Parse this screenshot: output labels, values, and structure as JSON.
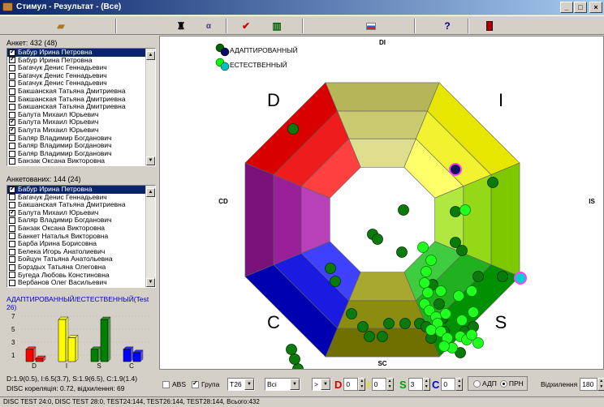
{
  "window": {
    "title": "Стимул - Результат - (Все)"
  },
  "toolbar": {
    "buttons": [
      {
        "name": "open-folder-icon",
        "glyph": "📂"
      },
      {
        "name": "bell-icon",
        "glyph": "🔔"
      },
      {
        "name": "compare-icon",
        "glyph": "⇆"
      },
      {
        "name": "checkmark-icon",
        "glyph": "✔"
      },
      {
        "name": "bar-chart-icon",
        "glyph": "▥"
      },
      {
        "name": "flag-icon",
        "glyph": "▬"
      },
      {
        "name": "help-icon",
        "glyph": "?"
      },
      {
        "name": "exit-icon",
        "glyph": "▮"
      }
    ]
  },
  "left": {
    "list1_caption": "Анкет: 432 (48)",
    "list1": [
      {
        "name": "Бабур Ирина Петровна",
        "checked": true,
        "selected": true
      },
      {
        "name": "Бабур Ирина Петровна",
        "checked": true,
        "selected": false
      },
      {
        "name": "Багачук Денис Геннадьевич",
        "checked": false,
        "selected": false
      },
      {
        "name": "Багачук Денис Геннадьевич",
        "checked": false,
        "selected": false
      },
      {
        "name": "Багачук Денис Геннадьевич",
        "checked": false,
        "selected": false
      },
      {
        "name": "Бакшанская Татьяна Дмитриевна",
        "checked": false,
        "selected": false
      },
      {
        "name": "Бакшанская Татьяна Дмитриевна",
        "checked": false,
        "selected": false
      },
      {
        "name": "Бакшанская Татьяна Дмитриевна",
        "checked": false,
        "selected": false
      },
      {
        "name": "Балута Михаил Юрьевич",
        "checked": false,
        "selected": false
      },
      {
        "name": "Балута Михаил Юрьевич",
        "checked": true,
        "selected": false
      },
      {
        "name": "Балута Михаил Юрьевич",
        "checked": true,
        "selected": false
      },
      {
        "name": "Баляр Владимир Богданович",
        "checked": false,
        "selected": false
      },
      {
        "name": "Баляр Владимир Богданович",
        "checked": false,
        "selected": false
      },
      {
        "name": "Баляр Владимир Богданович",
        "checked": false,
        "selected": false
      },
      {
        "name": "Банзак Оксана Викторовна",
        "checked": false,
        "selected": false
      }
    ],
    "list2_caption": "Анкетованих: 144 (24)",
    "list2": [
      {
        "name": "Бабур Ирина Петровна",
        "checked": true,
        "selected": true
      },
      {
        "name": "Багачук Денис Геннадьевич",
        "checked": false,
        "selected": false
      },
      {
        "name": "Бакшанская Татьяна Дмитриевна",
        "checked": false,
        "selected": false
      },
      {
        "name": "Балута Михаил Юрьевич",
        "checked": true,
        "selected": false
      },
      {
        "name": "Баляр Владимир Богданович",
        "checked": false,
        "selected": false
      },
      {
        "name": "Банзак Оксана Викторовна",
        "checked": false,
        "selected": false
      },
      {
        "name": "Банкет Наталья Викторовна",
        "checked": false,
        "selected": false
      },
      {
        "name": "Барба Ирина Борисовна",
        "checked": false,
        "selected": false
      },
      {
        "name": "Белека Игорь Анатолиевич",
        "checked": false,
        "selected": false
      },
      {
        "name": "Бойцун Татьяна Анатольевна",
        "checked": false,
        "selected": false
      },
      {
        "name": "Борздых Татьяна Олеговна",
        "checked": false,
        "selected": false
      },
      {
        "name": "Бугеда Любовь Констиновна",
        "checked": false,
        "selected": false
      },
      {
        "name": "Вербанов Олег Васильевич",
        "checked": false,
        "selected": false
      }
    ],
    "chart_title": "АДАПТИРОВАННЫЙ/ЕСТЕСТВЕННЫЙ(Test 26)",
    "stats_line1": "D:1.9(0.5), I:6.5(3.7), S:1.9(6.5), C:1.9(1.4)",
    "stats_line2": "DISC кореляція: 0.72, відхилення: 69"
  },
  "chart_data": [
    {
      "type": "bar",
      "title": "АДАПТИРОВАННЫЙ/ЕСТЕСТВЕННЫЙ(Test 26)",
      "categories": [
        "D",
        "I",
        "S",
        "C"
      ],
      "yticks": [
        "1",
        "3",
        "5",
        "7"
      ],
      "ylim": [
        0,
        8
      ],
      "series": [
        {
          "values": [
            1.9,
            6.5,
            1.9,
            1.9
          ]
        },
        {
          "values": [
            0.5,
            3.7,
            6.5,
            1.4
          ]
        }
      ],
      "colors": [
        "#ff0000",
        "#ffff00",
        "#008000",
        "#0000ff"
      ]
    },
    {
      "type": "scatter",
      "axes_labels": {
        "top": "DI",
        "right": "IS",
        "bottom": "SC",
        "left": "CD"
      },
      "quadrant_labels": {
        "d": "D",
        "i": "I",
        "s": "S",
        "c": "C"
      },
      "legend": [
        {
          "label": "АДАПТИРОВАННЫЙ",
          "color": "#006400",
          "ring": "#0a0a60"
        },
        {
          "label": "ЕСТЕСТВЕННЫЙ",
          "color": "#00ff00",
          "ring": "#00c0c0"
        }
      ],
      "legend_position": "top-left",
      "x_range": [
        -1,
        1
      ],
      "y_range": [
        -1,
        1
      ],
      "adapted_points": [
        [
          -0.55,
          0.56
        ],
        [
          0.45,
          0.31
        ],
        [
          0.68,
          0.23
        ],
        [
          0.13,
          0.06
        ],
        [
          -0.06,
          -0.09
        ],
        [
          -0.03,
          -0.12
        ],
        [
          0.45,
          0.05
        ],
        [
          0.45,
          -0.14
        ],
        [
          0.49,
          -0.19
        ],
        [
          0.12,
          -0.2
        ],
        [
          -0.32,
          -0.3
        ],
        [
          -0.29,
          -0.38
        ],
        [
          0.59,
          -0.35
        ],
        [
          0.74,
          -0.35
        ],
        [
          0.31,
          -0.4
        ],
        [
          0.35,
          -0.52
        ],
        [
          0.37,
          -0.61
        ],
        [
          -0.19,
          -0.58
        ],
        [
          0.04,
          -0.64
        ],
        [
          0.14,
          -0.64
        ],
        [
          0.23,
          -0.64
        ],
        [
          0.27,
          -0.66
        ],
        [
          -0.12,
          -0.66
        ],
        [
          -0.08,
          -0.72
        ],
        [
          0.0,
          -0.72
        ],
        [
          -0.56,
          -0.8
        ],
        [
          -0.52,
          -0.92
        ],
        [
          0.51,
          -0.69
        ],
        [
          0.56,
          -0.66
        ],
        [
          0.38,
          -0.69
        ],
        [
          0.48,
          -0.82
        ],
        [
          0.3,
          -0.73
        ],
        [
          -0.54,
          -0.86
        ]
      ],
      "natural_points": [
        [
          0.3,
          -0.25
        ],
        [
          0.27,
          -0.32
        ],
        [
          0.26,
          -0.39
        ],
        [
          0.28,
          -0.45
        ],
        [
          0.26,
          -0.52
        ],
        [
          0.29,
          -0.56
        ],
        [
          0.33,
          -0.6
        ],
        [
          0.34,
          -0.64
        ],
        [
          0.3,
          -0.68
        ],
        [
          0.36,
          -0.69
        ],
        [
          0.4,
          -0.73
        ],
        [
          0.48,
          -0.72
        ],
        [
          0.52,
          -0.74
        ],
        [
          0.43,
          -0.79
        ],
        [
          0.38,
          -0.78
        ],
        [
          0.55,
          -0.71
        ],
        [
          0.59,
          -0.76
        ],
        [
          0.49,
          -0.62
        ],
        [
          0.56,
          -0.57
        ],
        [
          0.39,
          -0.58
        ],
        [
          0.47,
          -0.47
        ],
        [
          0.55,
          -0.44
        ],
        [
          0.36,
          -0.44
        ],
        [
          0.51,
          0.06
        ],
        [
          0.25,
          -0.17
        ]
      ],
      "highlight_adapted": [
        0.45,
        0.31
      ],
      "highlight_natural": [
        0.85,
        -0.36
      ]
    }
  ],
  "controls": {
    "abs_label": "ABS",
    "abs_checked": false,
    "group_label": "Група",
    "group_checked": true,
    "test_select": "T26",
    "scope_select": "Всі",
    "operator_select": ">",
    "d_letter": "D",
    "d_value": "0",
    "i_letter": "I",
    "i_value": "0",
    "s_letter": "S",
    "s_value": "3",
    "c_letter": "C",
    "c_value": "0",
    "radio_adp": "АДП",
    "radio_prn": "ПРН",
    "deviation_label": "Відхилення",
    "deviation_value": "180"
  },
  "statusbar": {
    "text": "DISC TEST 24:0, DISC TEST 28:0, TEST24:144, TEST26:144, TEST28:144, Всього:432"
  }
}
